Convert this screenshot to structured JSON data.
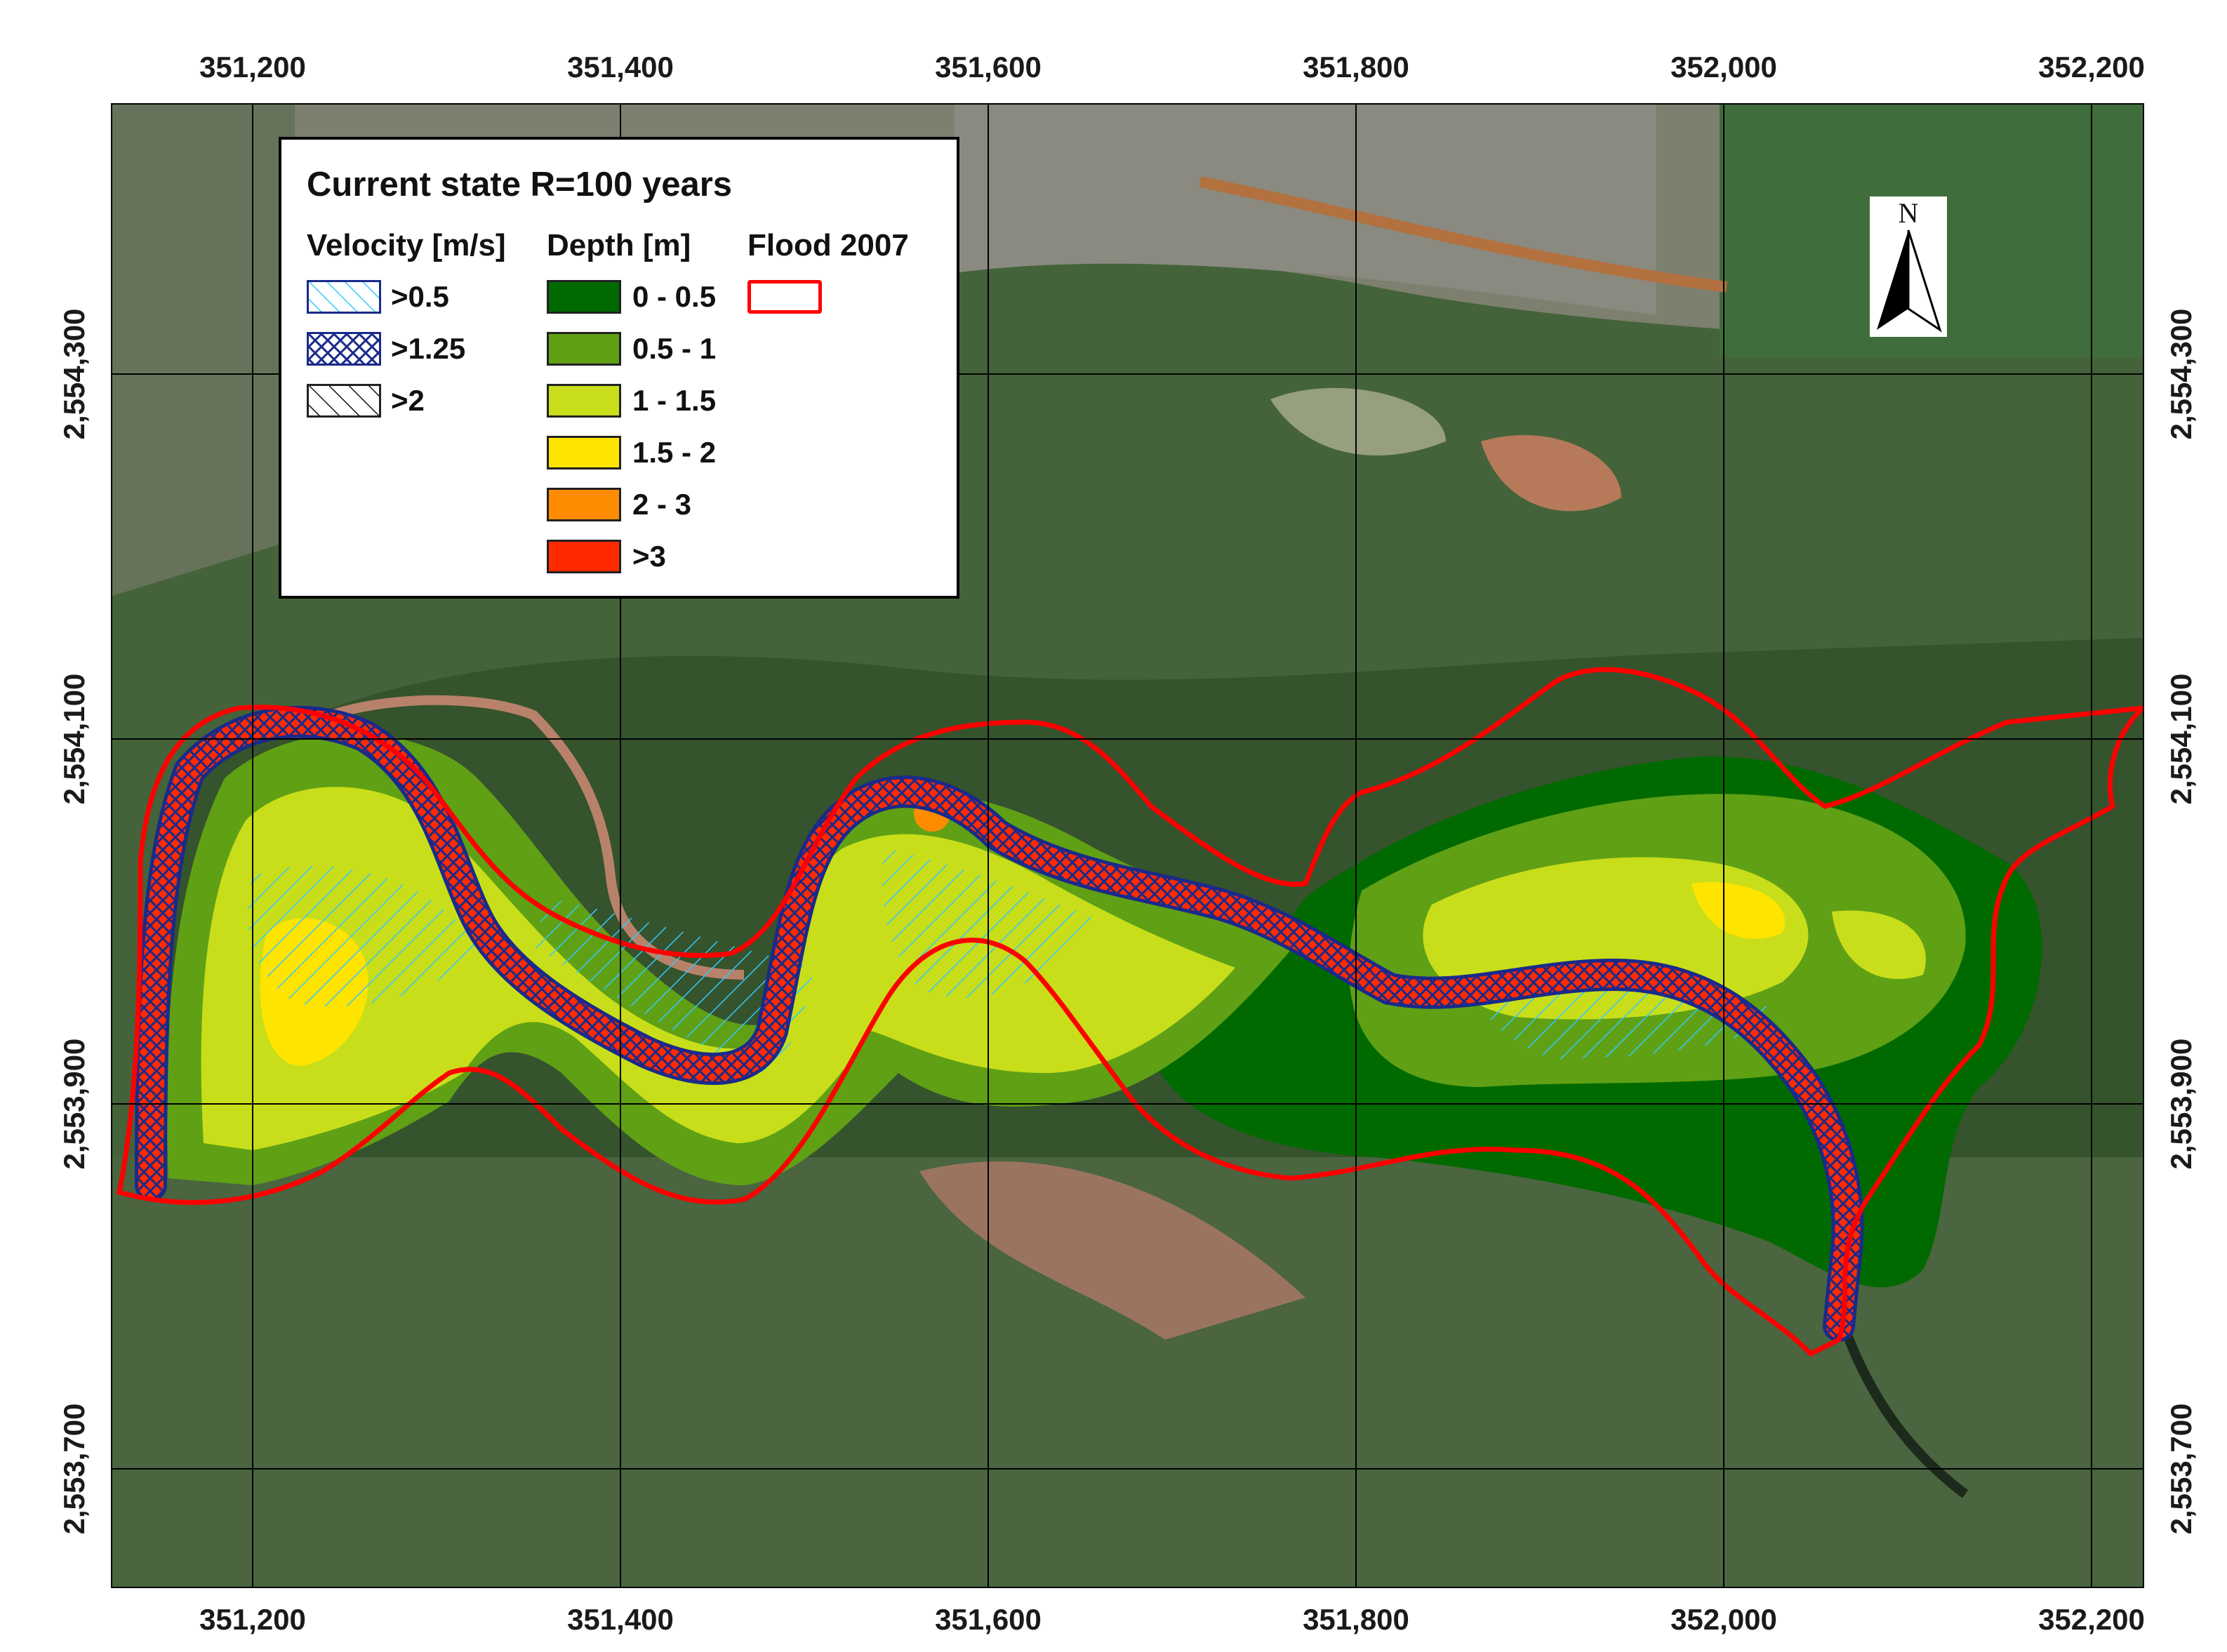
{
  "map": {
    "legend_title": "Current state R=100 years",
    "velocity_header": "Velocity [m/s]",
    "depth_header": "Depth [m]",
    "flood_header": "Flood 2007",
    "velocity_classes": [
      ">0.5",
      ">1.25",
      ">2"
    ],
    "depth_classes": [
      "0 - 0.5",
      "0.5 - 1",
      "1 - 1.5",
      "1.5 - 2",
      "2 - 3",
      ">3"
    ],
    "north_label": "N",
    "x_ticks": [
      "351,200",
      "351,400",
      "351,600",
      "351,800",
      "352,000",
      "352,200"
    ],
    "y_ticks": [
      "2,554,300",
      "2,554,100",
      "2,553,900",
      "2,553,700"
    ]
  },
  "colors": {
    "depth_0_05": "#006a00",
    "depth_05_1": "#5fa015",
    "depth_1_15": "#c8de1a",
    "depth_15_2": "#ffe400",
    "depth_2_3": "#ff8c00",
    "depth_gt3": "#ff2a00",
    "flood_2007": "#ff0000",
    "velocity_05": "#33c9ff",
    "velocity_125": "#1a2a8a",
    "velocity_2": "#111111"
  }
}
